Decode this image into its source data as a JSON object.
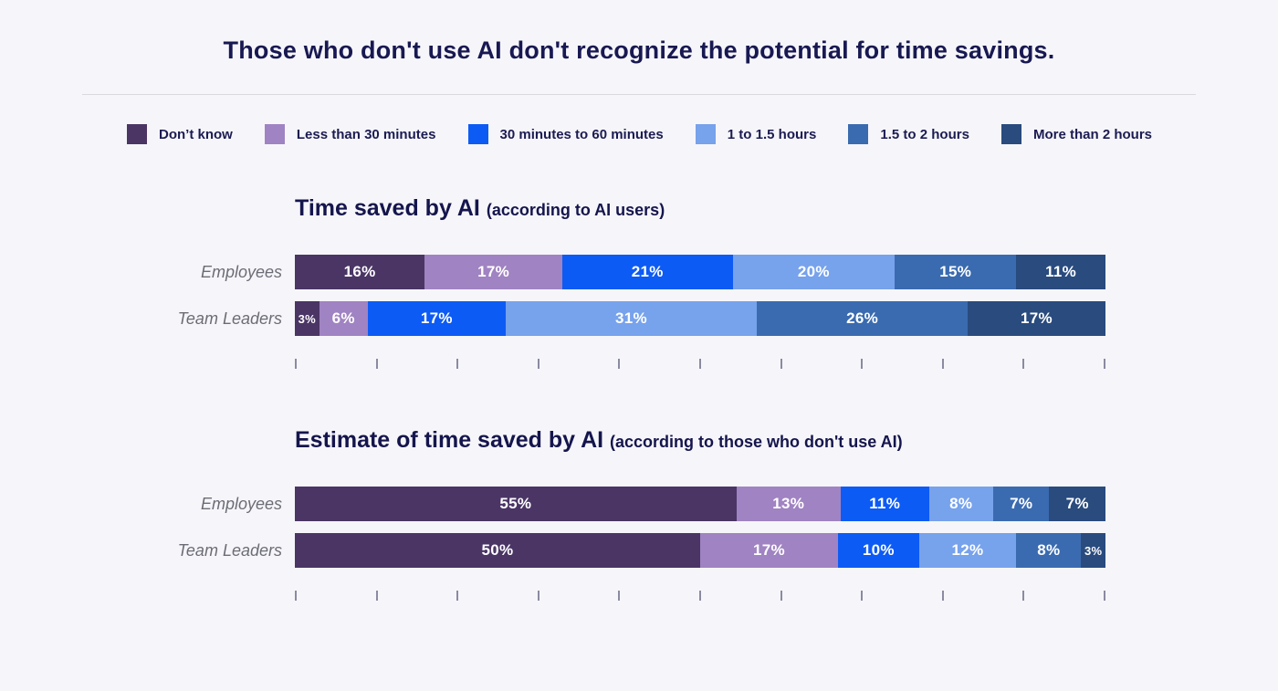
{
  "header": {
    "title": "Those who don't use AI don't recognize the potential for time savings."
  },
  "legend": {
    "items": [
      {
        "label": "Don’t know",
        "color": "#4a3565"
      },
      {
        "label": "Less than 30 minutes",
        "color": "#a083c2"
      },
      {
        "label": "30 minutes to 60 minutes",
        "color": "#0d5bf5"
      },
      {
        "label": "1 to 1.5 hours",
        "color": "#77a2ec"
      },
      {
        "label": "1.5 to 2 hours",
        "color": "#3a6bb0"
      },
      {
        "label": "More than 2 hours",
        "color": "#294b7e"
      }
    ]
  },
  "chart_data": [
    {
      "type": "bar",
      "orientation": "horizontal",
      "stacked": true,
      "title": "Time saved by AI",
      "subtitle": "(according to AI users)",
      "categories": [
        "Employees",
        "Team Leaders"
      ],
      "series": [
        {
          "name": "Don’t know",
          "color": "#4a3565",
          "values": [
            16,
            3
          ]
        },
        {
          "name": "Less than 30 minutes",
          "color": "#a083c2",
          "values": [
            17,
            6
          ]
        },
        {
          "name": "30 minutes to 60 minutes",
          "color": "#0d5bf5",
          "values": [
            21,
            17
          ]
        },
        {
          "name": "1 to 1.5 hours",
          "color": "#77a2ec",
          "values": [
            20,
            31
          ]
        },
        {
          "name": "1.5 to 2 hours",
          "color": "#3a6bb0",
          "values": [
            15,
            26
          ]
        },
        {
          "name": "More than 2 hours",
          "color": "#294b7e",
          "values": [
            11,
            17
          ]
        }
      ],
      "value_suffix": "%",
      "xlim": [
        0,
        100
      ],
      "axis": {
        "tick_count": 11,
        "tick_labels_visible": false,
        "grid": false
      },
      "legend_position": "top"
    },
    {
      "type": "bar",
      "orientation": "horizontal",
      "stacked": true,
      "title": "Estimate of time saved by AI",
      "subtitle": "(according to those who don't use AI)",
      "categories": [
        "Employees",
        "Team Leaders"
      ],
      "series": [
        {
          "name": "Don’t know",
          "color": "#4a3565",
          "values": [
            55,
            50
          ]
        },
        {
          "name": "Less than 30 minutes",
          "color": "#a083c2",
          "values": [
            13,
            17
          ]
        },
        {
          "name": "30 minutes to 60 minutes",
          "color": "#0d5bf5",
          "values": [
            11,
            10
          ]
        },
        {
          "name": "1 to 1.5 hours",
          "color": "#77a2ec",
          "values": [
            8,
            12
          ]
        },
        {
          "name": "1.5 to 2 hours",
          "color": "#3a6bb0",
          "values": [
            7,
            8
          ]
        },
        {
          "name": "More than 2 hours",
          "color": "#294b7e",
          "values": [
            7,
            3
          ]
        }
      ],
      "value_suffix": "%",
      "xlim": [
        0,
        100
      ],
      "axis": {
        "tick_count": 11,
        "tick_labels_visible": false,
        "grid": false
      },
      "legend_position": "top"
    }
  ]
}
